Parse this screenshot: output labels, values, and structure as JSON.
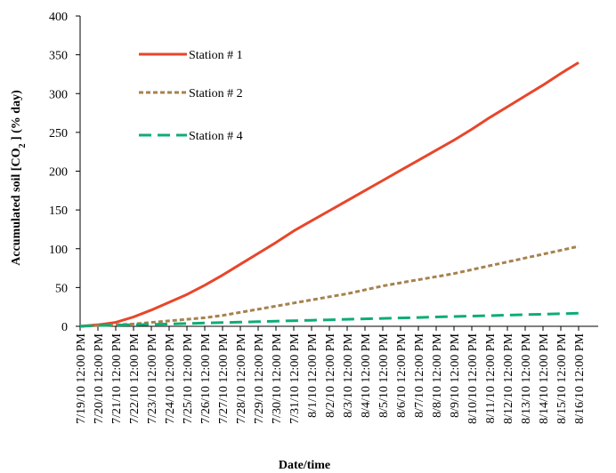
{
  "chart_data": {
    "type": "line",
    "title": "",
    "xlabel": "Date/time",
    "ylabel": {
      "part1": "Accumulated soil  [CO",
      "subscript": "2",
      "part2": " ] (% day)"
    },
    "ylim": [
      0,
      400
    ],
    "yticks": [
      0,
      50,
      100,
      150,
      200,
      250,
      300,
      350,
      400
    ],
    "grid": false,
    "legend_position": "top-left",
    "categories": [
      "7/19/10 12:00 PM",
      "7/20/10 12:00 PM",
      "7/21/10 12:00 PM",
      "7/22/10 12:00 PM",
      "7/23/10 12:00 PM",
      "7/24/10 12:00 PM",
      "7/25/10 12:00 PM",
      "7/26/10 12:00 PM",
      "7/27/10 12:00 PM",
      "7/28/10 12:00 PM",
      "7/29/10 12:00 PM",
      "7/30/10 12:00 PM",
      "7/31/10 12:00 PM",
      "8/1/10 12:00 PM",
      "8/2/10 12:00 PM",
      "8/3/10 12:00 PM",
      "8/4/10 12:00 PM",
      "8/5/10 12:00 PM",
      "8/6/10 12:00 PM",
      "8/7/10 12:00 PM",
      "8/8/10 12:00 PM",
      "8/9/10 12:00 PM",
      "8/10/10 12:00 PM",
      "8/11/10 12:00 PM",
      "8/12/10 12:00 PM",
      "8/13/10 12:00 PM",
      "8/14/10 12:00 PM",
      "8/15/10 12:00 PM",
      "8/16/10 12:00 PM"
    ],
    "series": [
      {
        "name": "Station # 1",
        "color": "#e8462a",
        "dash": "solid",
        "values": [
          0,
          2,
          5,
          12,
          21,
          31,
          41,
          53,
          66,
          80,
          94,
          108,
          123,
          136,
          149,
          162,
          175,
          188,
          201,
          214,
          227,
          240,
          254,
          269,
          283,
          297,
          311,
          326,
          340
        ]
      },
      {
        "name": "Station # 2",
        "color": "#a5824f",
        "dash": "dotted",
        "values": [
          0,
          1,
          2,
          3,
          5,
          7,
          9,
          11,
          14,
          18,
          22,
          26,
          30,
          34,
          38,
          42,
          47,
          52,
          56,
          60,
          64,
          68,
          73,
          78,
          83,
          88,
          93,
          98,
          103
        ]
      },
      {
        "name": "Station # 4",
        "color": "#0ead74",
        "dash": "dashed",
        "values": [
          0,
          1,
          1.5,
          2,
          2.5,
          3,
          3.6,
          4.2,
          4.8,
          5.4,
          6,
          6.6,
          7.2,
          7.8,
          8.4,
          9,
          9.6,
          10.2,
          10.8,
          11.4,
          12,
          12.6,
          13.2,
          13.8,
          14.4,
          15,
          15.6,
          16.2,
          16.8
        ]
      }
    ]
  }
}
